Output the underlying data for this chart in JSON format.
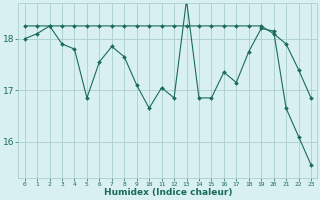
{
  "x": [
    0,
    1,
    2,
    3,
    4,
    5,
    6,
    7,
    8,
    9,
    10,
    11,
    12,
    13,
    14,
    15,
    16,
    17,
    18,
    19,
    20,
    21,
    22,
    23
  ],
  "y_line1": [
    18.0,
    18.1,
    18.25,
    17.9,
    17.8,
    16.85,
    17.55,
    17.85,
    17.65,
    17.1,
    16.65,
    17.05,
    16.85,
    18.75,
    16.85,
    16.85,
    17.35,
    17.15,
    17.75,
    18.2,
    18.15,
    16.65,
    16.1,
    15.55
  ],
  "y_line2": [
    18.25,
    18.25,
    18.25,
    18.25,
    18.25,
    18.25,
    18.25,
    18.25,
    18.25,
    18.25,
    18.25,
    18.25,
    18.25,
    18.25,
    18.25,
    18.25,
    18.25,
    18.25,
    18.25,
    18.25,
    18.1,
    17.9,
    17.4,
    16.85
  ],
  "color": "#1a6b5a",
  "bg_color": "#d8f0f0",
  "grid_color": "#aacece",
  "xlabel": "Humidex (Indice chaleur)",
  "yticks": [
    16,
    17,
    18
  ],
  "xtick_labels": [
    "0",
    "1",
    "2",
    "3",
    "4",
    "5",
    "6",
    "7",
    "8",
    "9",
    "10",
    "11",
    "12",
    "13",
    "14",
    "15",
    "16",
    "17",
    "18",
    "19",
    "20",
    "21",
    "22",
    "23"
  ],
  "ylim": [
    15.3,
    18.7
  ],
  "xlim": [
    -0.5,
    23.5
  ]
}
